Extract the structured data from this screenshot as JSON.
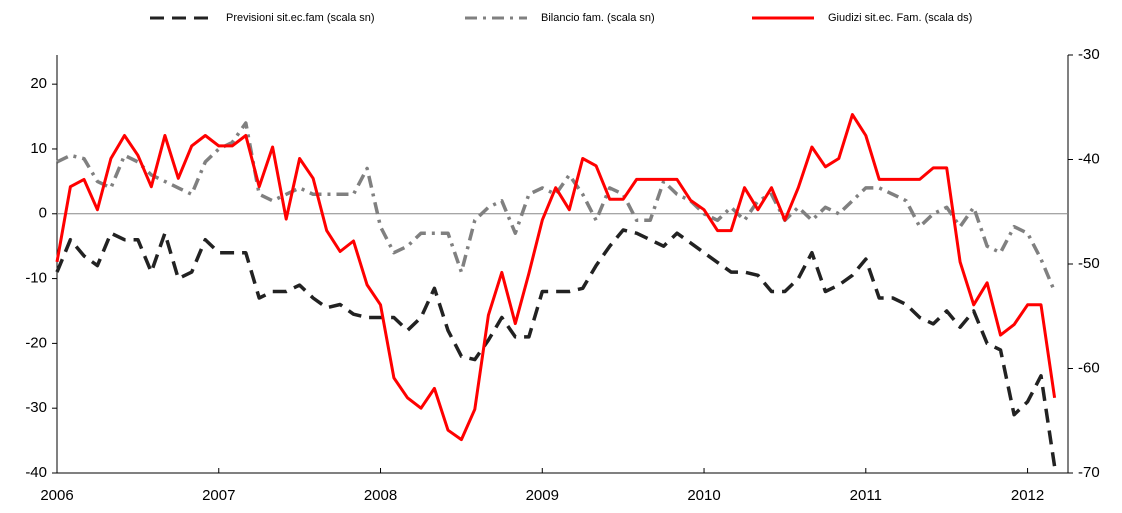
{
  "chart_data": {
    "type": "line",
    "legend": "top",
    "x": [
      2006,
      2006.083,
      2006.167,
      2006.25,
      2006.333,
      2006.417,
      2006.5,
      2006.583,
      2006.667,
      2006.75,
      2006.833,
      2006.917,
      2007,
      2007.083,
      2007.167,
      2007.25,
      2007.333,
      2007.417,
      2007.5,
      2007.583,
      2007.667,
      2007.75,
      2007.833,
      2007.917,
      2008,
      2008.083,
      2008.167,
      2008.25,
      2008.333,
      2008.417,
      2008.5,
      2008.583,
      2008.667,
      2008.75,
      2008.833,
      2008.917,
      2009,
      2009.083,
      2009.167,
      2009.25,
      2009.333,
      2009.417,
      2009.5,
      2009.583,
      2009.667,
      2009.75,
      2009.833,
      2009.917,
      2010,
      2010.083,
      2010.167,
      2010.25,
      2010.333,
      2010.417,
      2010.5,
      2010.583,
      2010.667,
      2010.75,
      2010.833,
      2010.917,
      2011,
      2011.083,
      2011.167,
      2011.25,
      2011.333,
      2011.417,
      2011.5,
      2011.583,
      2011.667,
      2011.75,
      2011.833,
      2011.917,
      2012,
      2012.083,
      2012.167
    ],
    "xlim": [
      2006,
      2012.25
    ],
    "xticks": [
      2006,
      2007,
      2008,
      2009,
      2010,
      2011,
      2012
    ],
    "ylim": [
      -40,
      24.5
    ],
    "yticks": [
      -40,
      -30,
      -20,
      -10,
      0,
      10,
      20
    ],
    "y2lim": [
      -70,
      -30
    ],
    "y2ticks": [
      -70,
      -60,
      -50,
      -40,
      -30
    ],
    "series": [
      {
        "name": "Previsioni sit.ec.fam (scala sn)",
        "color": "#222222",
        "dash": "dash",
        "values": [
          -9,
          -4,
          -6.5,
          -8,
          -3,
          -4,
          -4,
          -9,
          -3,
          -10,
          -9,
          -4,
          -6,
          -6,
          -6,
          -13,
          -12,
          -12,
          -11,
          -13,
          -14.5,
          -14,
          -15.5,
          -16,
          -16,
          -16,
          -18,
          -16,
          -11.5,
          -18,
          -22,
          -22.5,
          -19.5,
          -16,
          -19,
          -19,
          -12,
          -12,
          -12,
          -11.5,
          -8,
          -5,
          -2.5,
          -3,
          -4,
          -5,
          -3,
          -4.5,
          -6,
          -7.5,
          -9,
          -9,
          -9.5,
          -12,
          -12,
          -10,
          -6,
          -12,
          -11,
          -9.5,
          -7,
          -13,
          -13,
          -14,
          -16,
          -17,
          -15,
          -17.5,
          -15,
          -20,
          -21,
          -31,
          -29,
          -25,
          -39
        ]
      },
      {
        "name": "Bilancio fam. (scala sn)",
        "color": "#808080",
        "dash": "dashdot",
        "values": [
          8,
          9,
          8.5,
          5,
          4,
          9,
          8,
          6,
          5,
          4,
          3,
          8,
          10,
          11,
          14,
          3,
          2,
          3,
          4,
          3,
          3,
          3,
          3,
          7,
          -2,
          -6,
          -5,
          -3,
          -3,
          -3,
          -9,
          -1,
          1,
          2,
          -3,
          3,
          4,
          3,
          6,
          3,
          -1,
          4,
          3,
          -1,
          -1,
          5,
          3,
          2,
          0,
          -1,
          1,
          -1,
          2,
          3,
          -1,
          1,
          -1,
          1,
          0,
          2,
          4,
          4,
          3,
          2,
          -2,
          0,
          1,
          -2,
          1,
          -5,
          -6,
          -2,
          -3,
          -7,
          -12
        ]
      },
      {
        "name": "Giudizi sit.ec. Fam. (scala ds)",
        "color": "#ff0000",
        "dash": "solid",
        "axis": "y2",
        "values": [
          -49.8,
          -42.6,
          -41.9,
          -44.8,
          -39.9,
          -37.7,
          -39.6,
          -42.6,
          -37.7,
          -41.8,
          -38.7,
          -37.7,
          -38.7,
          -38.7,
          -37.7,
          -42.6,
          -38.8,
          -45.7,
          -39.9,
          -41.8,
          -46.8,
          -48.8,
          -47.8,
          -52,
          -53.9,
          -60.9,
          -62.8,
          -63.8,
          -61.9,
          -65.9,
          -66.8,
          -63.9,
          -54.9,
          -50.8,
          -55.7,
          -50.9,
          -45.8,
          -42.7,
          -44.8,
          -39.9,
          -40.6,
          -43.8,
          -43.8,
          -41.9,
          -41.9,
          -41.9,
          -41.9,
          -43.9,
          -44.8,
          -46.8,
          -46.8,
          -42.7,
          -44.8,
          -42.7,
          -45.8,
          -42.7,
          -38.8,
          -40.7,
          -39.9,
          -35.7,
          -37.7,
          -41.9,
          -41.9,
          -41.9,
          -41.9,
          -40.8,
          -40.8,
          -49.8,
          -53.9,
          -51.8,
          -56.8,
          -55.8,
          -53.9,
          -53.9,
          -62.8
        ]
      }
    ]
  }
}
